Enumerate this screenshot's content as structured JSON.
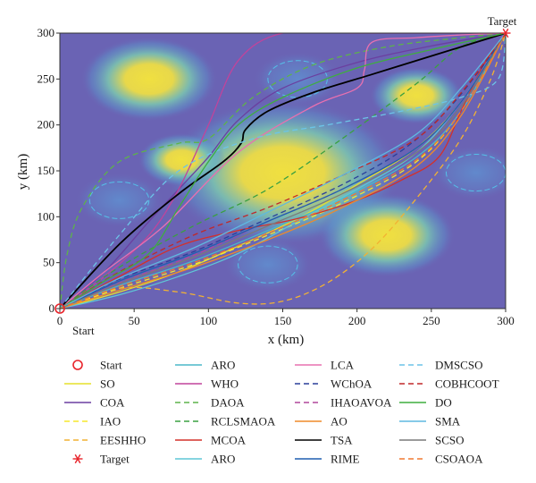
{
  "chart_data": {
    "type": "line",
    "title": "",
    "xlabel": "x (km)",
    "ylabel": "y (km)",
    "xlim": [
      0,
      300
    ],
    "ylim": [
      0,
      300
    ],
    "xticks": [
      0,
      50,
      100,
      150,
      200,
      250,
      300
    ],
    "yticks": [
      0,
      50,
      100,
      150,
      200,
      250,
      300
    ],
    "grid": false,
    "legend_position": "bottom",
    "background": "threat-field heatmap",
    "colors": {
      "field_base": "#6a63b4",
      "field_peak": "#f0e040"
    },
    "threats": [
      {
        "cx": 60,
        "cy": 250,
        "r": 22,
        "type": "peak"
      },
      {
        "cx": 150,
        "cy": 148,
        "r": 38,
        "type": "peak"
      },
      {
        "cx": 240,
        "cy": 232,
        "r": 15,
        "type": "peak"
      },
      {
        "cx": 220,
        "cy": 80,
        "r": 22,
        "type": "peak"
      },
      {
        "cx": 82,
        "cy": 162,
        "r": 14,
        "type": "peak"
      },
      {
        "cx": 40,
        "cy": 118,
        "r": 20,
        "type": "zone"
      },
      {
        "cx": 160,
        "cy": 250,
        "r": 20,
        "type": "zone"
      },
      {
        "cx": 140,
        "cy": 48,
        "r": 20,
        "type": "zone"
      },
      {
        "cx": 280,
        "cy": 148,
        "r": 20,
        "type": "zone"
      }
    ],
    "markers": [
      {
        "name": "Start",
        "x": 0,
        "y": 0,
        "symbol": "circle",
        "color": "#e8232a",
        "label": "Start"
      },
      {
        "name": "Target",
        "x": 300,
        "y": 300,
        "symbol": "asterisk",
        "color": "#e8232a",
        "label": "Target"
      }
    ],
    "series": [
      {
        "name": "SO",
        "color": "#e6e02c",
        "dash": "solid",
        "x": [
          0,
          40,
          80,
          120,
          160,
          200,
          240,
          270,
          300
        ],
        "y": [
          0,
          18,
          40,
          68,
          98,
          135,
          175,
          225,
          300
        ]
      },
      {
        "name": "COA",
        "color": "#6b3fa0",
        "dash": "solid",
        "x": [
          0,
          30,
          60,
          80,
          100,
          120,
          150,
          200,
          250,
          300
        ],
        "y": [
          0,
          40,
          95,
          130,
          165,
          205,
          240,
          268,
          286,
          300
        ]
      },
      {
        "name": "IAO",
        "color": "#f5e92c",
        "dash": "dash",
        "x": [
          0,
          40,
          90,
          140,
          190,
          240,
          270,
          300
        ],
        "y": [
          0,
          22,
          48,
          80,
          115,
          160,
          215,
          300
        ]
      },
      {
        "name": "EESHHO",
        "color": "#f2b233",
        "dash": "dash",
        "x": [
          0,
          40,
          80,
          120,
          150,
          180,
          210,
          240,
          270,
          290,
          300
        ],
        "y": [
          0,
          22,
          18,
          6,
          8,
          28,
          65,
          120,
          185,
          250,
          300
        ]
      },
      {
        "name": "ARO",
        "color": "#4bb8c8",
        "dash": "solid",
        "x": [
          0,
          40,
          90,
          140,
          190,
          240,
          270,
          300
        ],
        "y": [
          0,
          25,
          52,
          85,
          120,
          165,
          215,
          300
        ]
      },
      {
        "name": "WHO",
        "color": "#c0449c",
        "dash": "solid",
        "x": [
          0,
          30,
          60,
          80,
          100,
          120,
          150,
          200,
          250,
          300
        ],
        "y": [
          0,
          35,
          80,
          130,
          200,
          270,
          300,
          300,
          300,
          300
        ]
      },
      {
        "name": "DAOA",
        "color": "#5db34a",
        "dash": "dash",
        "x": [
          0,
          5,
          15,
          40,
          80,
          100,
          130,
          170,
          220,
          270,
          300
        ],
        "y": [
          0,
          60,
          110,
          160,
          180,
          185,
          230,
          265,
          285,
          295,
          300
        ]
      },
      {
        "name": "RCLSMAOA",
        "color": "#3aa040",
        "dash": "dash",
        "x": [
          0,
          40,
          90,
          140,
          190,
          240,
          270,
          300
        ],
        "y": [
          0,
          45,
          90,
          130,
          185,
          245,
          285,
          300
        ]
      },
      {
        "name": "MCOA",
        "color": "#d4302a",
        "dash": "solid",
        "x": [
          0,
          40,
          80,
          120,
          160,
          200,
          230,
          255,
          270,
          285,
          300
        ],
        "y": [
          0,
          35,
          68,
          85,
          98,
          118,
          140,
          165,
          215,
          265,
          300
        ]
      },
      {
        "name": "ARO",
        "color": "#5fc6d6",
        "dash": "solid",
        "x": [
          0,
          40,
          80,
          120,
          160,
          200,
          240,
          270,
          300
        ],
        "y": [
          0,
          15,
          35,
          60,
          95,
          130,
          170,
          225,
          300
        ]
      },
      {
        "name": "LCA",
        "color": "#e870b0",
        "dash": "solid",
        "x": [
          0,
          30,
          70,
          120,
          170,
          200,
          205,
          210,
          240,
          270,
          300
        ],
        "y": [
          0,
          40,
          90,
          170,
          220,
          240,
          260,
          290,
          295,
          298,
          300
        ]
      },
      {
        "name": "WChOA",
        "color": "#2a3f9a",
        "dash": "dash",
        "x": [
          0,
          40,
          90,
          140,
          190,
          230,
          260,
          285,
          300
        ],
        "y": [
          0,
          32,
          62,
          98,
          135,
          172,
          215,
          265,
          300
        ]
      },
      {
        "name": "IHAOAVOA",
        "color": "#b0479c",
        "dash": "dash",
        "x": [
          0,
          40,
          90,
          140,
          190,
          240,
          270,
          300
        ],
        "y": [
          0,
          28,
          58,
          95,
          130,
          175,
          225,
          300
        ]
      },
      {
        "name": "AO",
        "color": "#ef8a2a",
        "dash": "solid",
        "x": [
          0,
          40,
          90,
          140,
          190,
          240,
          270,
          300
        ],
        "y": [
          0,
          20,
          45,
          75,
          110,
          155,
          210,
          300
        ]
      },
      {
        "name": "TSA",
        "color": "#000000",
        "dash": "solid",
        "x": [
          0,
          40,
          80,
          110,
          122,
          125,
          140,
          170,
          210,
          250,
          300
        ],
        "y": [
          0,
          70,
          125,
          160,
          180,
          195,
          215,
          235,
          255,
          275,
          300
        ]
      },
      {
        "name": "RIME",
        "color": "#1f5fb0",
        "dash": "solid",
        "x": [
          0,
          40,
          90,
          140,
          190,
          240,
          270,
          300
        ],
        "y": [
          0,
          30,
          60,
          95,
          130,
          175,
          225,
          300
        ]
      },
      {
        "name": "DMSCSO",
        "color": "#6cc4e8",
        "dash": "dash",
        "x": [
          0,
          40,
          80,
          130,
          180,
          230,
          270,
          295,
          300
        ],
        "y": [
          0,
          80,
          150,
          185,
          200,
          215,
          230,
          250,
          300
        ]
      },
      {
        "name": "COBHCOOT",
        "color": "#c0282a",
        "dash": "dash",
        "x": [
          0,
          40,
          90,
          140,
          190,
          240,
          270,
          300
        ],
        "y": [
          0,
          40,
          80,
          110,
          145,
          185,
          235,
          300
        ]
      },
      {
        "name": "DO",
        "color": "#3fae3f",
        "dash": "solid",
        "x": [
          0,
          30,
          60,
          80,
          100,
          120,
          150,
          200,
          250,
          300
        ],
        "y": [
          0,
          30,
          60,
          110,
          160,
          200,
          230,
          262,
          282,
          300
        ]
      },
      {
        "name": "SMA",
        "color": "#5fb8e0",
        "dash": "solid",
        "x": [
          0,
          40,
          90,
          140,
          190,
          240,
          270,
          300
        ],
        "y": [
          0,
          33,
          66,
          105,
          145,
          190,
          240,
          300
        ]
      },
      {
        "name": "SCSO",
        "color": "#7a7a7a",
        "dash": "solid",
        "x": [
          0,
          40,
          90,
          140,
          190,
          240,
          270,
          300
        ],
        "y": [
          0,
          27,
          56,
          90,
          125,
          170,
          220,
          300
        ]
      },
      {
        "name": "CSOAOA",
        "color": "#f07830",
        "dash": "dash",
        "x": [
          0,
          40,
          90,
          140,
          190,
          240,
          270,
          300
        ],
        "y": [
          0,
          24,
          50,
          82,
          118,
          162,
          215,
          300
        ]
      }
    ],
    "legend": [
      {
        "label": "Start",
        "symbol": "circle",
        "color": "#e8232a",
        "dash": "none"
      },
      {
        "label": "SO",
        "symbol": "line",
        "color": "#e6e02c",
        "dash": "solid"
      },
      {
        "label": "COA",
        "symbol": "line",
        "color": "#6b3fa0",
        "dash": "solid"
      },
      {
        "label": "IAO",
        "symbol": "line",
        "color": "#f5e92c",
        "dash": "dash"
      },
      {
        "label": "EESHHO",
        "symbol": "line",
        "color": "#f2b233",
        "dash": "dash"
      },
      {
        "label": "Target",
        "symbol": "asterisk",
        "color": "#e8232a",
        "dash": "none"
      },
      {
        "label": "ARO",
        "symbol": "line",
        "color": "#4bb8c8",
        "dash": "solid"
      },
      {
        "label": "WHO",
        "symbol": "line",
        "color": "#c0449c",
        "dash": "solid"
      },
      {
        "label": "DAOA",
        "symbol": "line",
        "color": "#5db34a",
        "dash": "dash"
      },
      {
        "label": "RCLSMAOA",
        "symbol": "line",
        "color": "#3aa040",
        "dash": "dash"
      },
      {
        "label": "MCOA",
        "symbol": "line",
        "color": "#d4302a",
        "dash": "solid"
      },
      {
        "label": "ARO",
        "symbol": "line",
        "color": "#5fc6d6",
        "dash": "solid"
      },
      {
        "label": "LCA",
        "symbol": "line",
        "color": "#e870b0",
        "dash": "solid"
      },
      {
        "label": "WChOA",
        "symbol": "line",
        "color": "#2a3f9a",
        "dash": "dash"
      },
      {
        "label": "IHAOAVOA",
        "symbol": "line",
        "color": "#b0479c",
        "dash": "dash"
      },
      {
        "label": "AO",
        "symbol": "line",
        "color": "#ef8a2a",
        "dash": "solid"
      },
      {
        "label": "TSA",
        "symbol": "line",
        "color": "#000000",
        "dash": "solid"
      },
      {
        "label": "RIME",
        "symbol": "line",
        "color": "#1f5fb0",
        "dash": "solid"
      },
      {
        "label": "DMSCSO",
        "symbol": "line",
        "color": "#6cc4e8",
        "dash": "dash"
      },
      {
        "label": "COBHCOOT",
        "symbol": "line",
        "color": "#c0282a",
        "dash": "dash"
      },
      {
        "label": "DO",
        "symbol": "line",
        "color": "#3fae3f",
        "dash": "solid"
      },
      {
        "label": "SMA",
        "symbol": "line",
        "color": "#5fb8e0",
        "dash": "solid"
      },
      {
        "label": "SCSO",
        "symbol": "line",
        "color": "#7a7a7a",
        "dash": "solid"
      },
      {
        "label": "CSOAOA",
        "symbol": "line",
        "color": "#f07830",
        "dash": "dash"
      }
    ]
  }
}
